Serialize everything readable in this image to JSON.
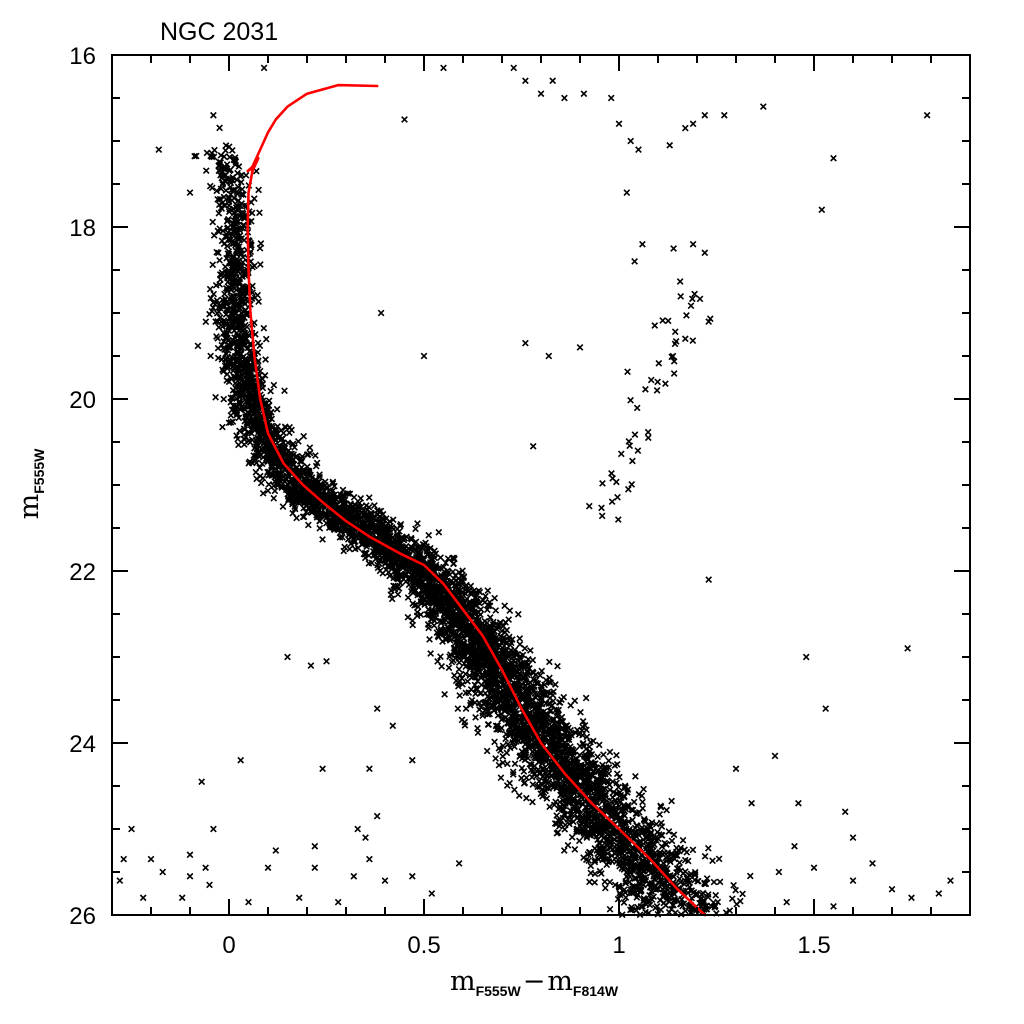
{
  "chart_data": {
    "type": "scatter",
    "title": "NGC 2031",
    "xlabel": {
      "main": "m",
      "sub1": "F555W",
      "minus": "−",
      "main2": "m",
      "sub2": "F814W"
    },
    "ylabel": {
      "main": "m",
      "sub": "F555W"
    },
    "xlim": [
      -0.3,
      1.9
    ],
    "ylim": [
      26,
      16
    ],
    "y_inverted": true,
    "x_ticks": [
      {
        "v": 0,
        "label": "0"
      },
      {
        "v": 0.5,
        "label": "0.5"
      },
      {
        "v": 1,
        "label": "1"
      },
      {
        "v": 1.5,
        "label": "1.5"
      }
    ],
    "y_ticks": [
      {
        "v": 16,
        "label": "16"
      },
      {
        "v": 18,
        "label": "18"
      },
      {
        "v": 20,
        "label": "20"
      },
      {
        "v": 22,
        "label": "22"
      },
      {
        "v": 24,
        "label": "24"
      },
      {
        "v": 26,
        "label": "26"
      }
    ],
    "x_minor_step": 0.1,
    "y_minor_step": 0.5,
    "grid": false,
    "colors": {
      "points": "#000000",
      "isochrone": "#ff0000",
      "frame": "#000000"
    },
    "series": [
      {
        "type": "line",
        "color": "#ff0000",
        "points": [
          [
            1.22,
            26.0
          ],
          [
            1.15,
            25.7
          ],
          [
            1.08,
            25.35
          ],
          [
            1.0,
            25.0
          ],
          [
            0.93,
            24.7
          ],
          [
            0.86,
            24.35
          ],
          [
            0.8,
            24.0
          ],
          [
            0.75,
            23.6
          ],
          [
            0.7,
            23.15
          ],
          [
            0.65,
            22.75
          ],
          [
            0.6,
            22.45
          ],
          [
            0.55,
            22.15
          ],
          [
            0.5,
            21.93
          ],
          [
            0.44,
            21.8
          ],
          [
            0.36,
            21.6
          ],
          [
            0.3,
            21.42
          ],
          [
            0.24,
            21.2
          ],
          [
            0.19,
            21.0
          ],
          [
            0.14,
            20.75
          ],
          [
            0.1,
            20.4
          ],
          [
            0.08,
            20.0
          ],
          [
            0.065,
            19.5
          ],
          [
            0.055,
            19.0
          ],
          [
            0.05,
            18.5
          ],
          [
            0.048,
            18.0
          ],
          [
            0.05,
            17.6
          ],
          [
            0.06,
            17.35
          ],
          [
            0.075,
            17.2
          ],
          [
            0.065,
            17.3
          ],
          [
            0.048,
            17.35
          ],
          [
            0.06,
            17.3
          ],
          [
            0.08,
            17.1
          ],
          [
            0.1,
            16.9
          ],
          [
            0.12,
            16.75
          ],
          [
            0.15,
            16.6
          ],
          [
            0.2,
            16.45
          ],
          [
            0.28,
            16.35
          ],
          [
            0.38,
            16.36
          ]
        ]
      },
      {
        "type": "scatter",
        "marker": "x",
        "color": "#000000",
        "ridge": [
          [
            -0.02,
            17.1
          ],
          [
            0.02,
            17.7
          ],
          [
            0.02,
            18.4
          ],
          [
            0.01,
            19.0
          ],
          [
            0.03,
            19.6
          ],
          [
            0.06,
            20.1
          ],
          [
            0.11,
            20.6
          ],
          [
            0.18,
            21.0
          ],
          [
            0.27,
            21.3
          ],
          [
            0.38,
            21.6
          ],
          [
            0.48,
            21.95
          ],
          [
            0.57,
            22.4
          ],
          [
            0.65,
            22.9
          ],
          [
            0.72,
            23.4
          ],
          [
            0.8,
            23.9
          ],
          [
            0.88,
            24.4
          ],
          [
            0.97,
            24.9
          ],
          [
            1.07,
            25.4
          ],
          [
            1.17,
            25.95
          ]
        ],
        "ridge_counts": [
          80,
          140,
          160,
          180,
          200,
          220,
          250,
          300,
          320,
          340,
          380,
          400,
          420,
          420,
          400,
          380,
          360,
          320
        ],
        "red_clump_branch": [
          [
            0.94,
            21.3
          ],
          [
            0.97,
            21.1
          ],
          [
            1.0,
            20.9
          ],
          [
            1.02,
            20.6
          ],
          [
            1.04,
            20.3
          ],
          [
            1.06,
            20.0
          ],
          [
            1.08,
            19.8
          ],
          [
            1.1,
            19.6
          ],
          [
            1.12,
            19.4
          ],
          [
            1.14,
            19.2
          ],
          [
            1.16,
            19.0
          ],
          [
            1.17,
            18.8
          ]
        ],
        "scattered": [
          [
            -0.18,
            17.1
          ],
          [
            -0.1,
            17.6
          ],
          [
            -0.04,
            16.7
          ],
          [
            0.09,
            16.15
          ],
          [
            0.07,
            17.35
          ],
          [
            0.55,
            16.15
          ],
          [
            0.45,
            16.75
          ],
          [
            0.73,
            16.15
          ],
          [
            0.76,
            16.3
          ],
          [
            0.8,
            16.45
          ],
          [
            0.83,
            16.3
          ],
          [
            0.86,
            16.5
          ],
          [
            0.91,
            16.45
          ],
          [
            0.98,
            16.5
          ],
          [
            1.05,
            17.1
          ],
          [
            1.0,
            16.8
          ],
          [
            1.03,
            17.0
          ],
          [
            1.13,
            17.05
          ],
          [
            1.17,
            16.85
          ],
          [
            1.19,
            16.8
          ],
          [
            1.22,
            16.7
          ],
          [
            1.27,
            16.7
          ],
          [
            1.02,
            17.6
          ],
          [
            1.06,
            18.2
          ],
          [
            1.04,
            18.4
          ],
          [
            1.14,
            18.25
          ],
          [
            1.19,
            18.2
          ],
          [
            1.22,
            18.3
          ],
          [
            1.37,
            16.6
          ],
          [
            1.55,
            17.2
          ],
          [
            1.79,
            16.7
          ],
          [
            1.52,
            17.8
          ],
          [
            0.39,
            19.0
          ],
          [
            0.76,
            19.35
          ],
          [
            0.82,
            19.5
          ],
          [
            0.9,
            19.4
          ],
          [
            1.17,
            19.3
          ],
          [
            1.23,
            19.1
          ],
          [
            0.5,
            19.5
          ],
          [
            0.78,
            20.55
          ],
          [
            1.23,
            22.1
          ],
          [
            1.48,
            23.0
          ],
          [
            1.74,
            22.9
          ],
          [
            1.53,
            23.6
          ],
          [
            0.27,
            21.5
          ],
          [
            0.03,
            24.2
          ],
          [
            0.24,
            24.3
          ],
          [
            0.21,
            23.1
          ],
          [
            0.25,
            23.05
          ],
          [
            -0.07,
            24.45
          ],
          [
            -0.04,
            25.0
          ],
          [
            -0.25,
            25.0
          ],
          [
            -0.27,
            25.35
          ],
          [
            -0.2,
            25.35
          ],
          [
            -0.17,
            25.5
          ],
          [
            -0.1,
            25.3
          ],
          [
            -0.06,
            25.45
          ],
          [
            -0.1,
            25.55
          ],
          [
            -0.28,
            25.6
          ],
          [
            -0.22,
            25.8
          ],
          [
            -0.12,
            25.8
          ],
          [
            -0.05,
            25.65
          ],
          [
            0.1,
            25.45
          ],
          [
            0.12,
            25.25
          ],
          [
            0.22,
            25.2
          ],
          [
            0.22,
            25.45
          ],
          [
            0.33,
            25.0
          ],
          [
            0.35,
            25.1
          ],
          [
            0.32,
            25.55
          ],
          [
            0.36,
            25.35
          ],
          [
            0.38,
            24.85
          ],
          [
            0.4,
            25.6
          ],
          [
            0.28,
            25.85
          ],
          [
            0.18,
            25.8
          ],
          [
            0.05,
            25.85
          ],
          [
            0.47,
            25.55
          ],
          [
            0.52,
            25.75
          ],
          [
            0.59,
            25.4
          ],
          [
            1.5,
            25.45
          ],
          [
            1.55,
            25.9
          ],
          [
            1.6,
            25.6
          ],
          [
            1.65,
            25.4
          ],
          [
            1.7,
            25.7
          ],
          [
            1.75,
            25.8
          ],
          [
            1.82,
            25.75
          ],
          [
            1.85,
            25.6
          ],
          [
            1.41,
            25.5
          ],
          [
            1.46,
            24.7
          ],
          [
            1.4,
            24.15
          ],
          [
            1.34,
            24.7
          ],
          [
            1.3,
            24.3
          ],
          [
            1.58,
            24.8
          ],
          [
            1.6,
            25.1
          ],
          [
            1.45,
            25.2
          ],
          [
            1.43,
            25.85
          ],
          [
            0.15,
            23.0
          ],
          [
            0.38,
            23.6
          ],
          [
            0.42,
            23.8
          ],
          [
            0.36,
            24.3
          ],
          [
            0.47,
            24.2
          ]
        ]
      }
    ]
  }
}
